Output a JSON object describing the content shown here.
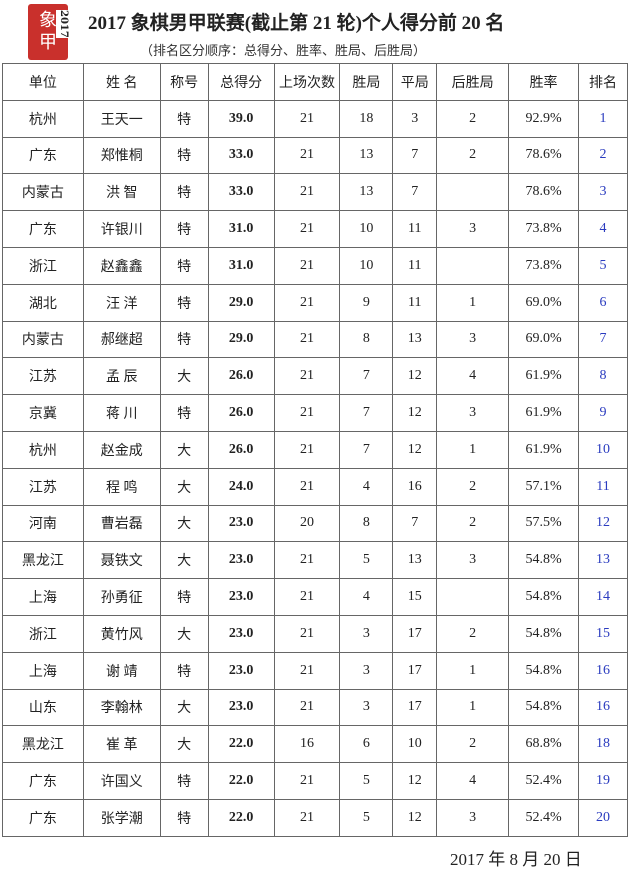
{
  "logo": {
    "text": "象甲",
    "year": "2017",
    "color": "#c9302c"
  },
  "title": "2017 象棋男甲联赛(截止第 21 轮)个人得分前 20 名",
  "subtitle": "（排名区分顺序：总得分、胜率、胜局、后胜局）",
  "columns": [
    "单位",
    "姓 名",
    "称号",
    "总得分",
    "上场次数",
    "胜局",
    "平局",
    "后胜局",
    "胜率",
    "排名"
  ],
  "rows": [
    [
      "杭州",
      "王天一",
      "特",
      "39.0",
      "21",
      "18",
      "3",
      "2",
      "92.9%",
      "1"
    ],
    [
      "广东",
      "郑惟桐",
      "特",
      "33.0",
      "21",
      "13",
      "7",
      "2",
      "78.6%",
      "2"
    ],
    [
      "内蒙古",
      "洪 智",
      "特",
      "33.0",
      "21",
      "13",
      "7",
      "",
      "78.6%",
      "3"
    ],
    [
      "广东",
      "许银川",
      "特",
      "31.0",
      "21",
      "10",
      "11",
      "3",
      "73.8%",
      "4"
    ],
    [
      "浙江",
      "赵鑫鑫",
      "特",
      "31.0",
      "21",
      "10",
      "11",
      "",
      "73.8%",
      "5"
    ],
    [
      "湖北",
      "汪 洋",
      "特",
      "29.0",
      "21",
      "9",
      "11",
      "1",
      "69.0%",
      "6"
    ],
    [
      "内蒙古",
      "郝继超",
      "特",
      "29.0",
      "21",
      "8",
      "13",
      "3",
      "69.0%",
      "7"
    ],
    [
      "江苏",
      "孟 辰",
      "大",
      "26.0",
      "21",
      "7",
      "12",
      "4",
      "61.9%",
      "8"
    ],
    [
      "京冀",
      "蒋 川",
      "特",
      "26.0",
      "21",
      "7",
      "12",
      "3",
      "61.9%",
      "9"
    ],
    [
      "杭州",
      "赵金成",
      "大",
      "26.0",
      "21",
      "7",
      "12",
      "1",
      "61.9%",
      "10"
    ],
    [
      "江苏",
      "程 鸣",
      "大",
      "24.0",
      "21",
      "4",
      "16",
      "2",
      "57.1%",
      "11"
    ],
    [
      "河南",
      "曹岩磊",
      "大",
      "23.0",
      "20",
      "8",
      "7",
      "2",
      "57.5%",
      "12"
    ],
    [
      "黑龙江",
      "聂铁文",
      "大",
      "23.0",
      "21",
      "5",
      "13",
      "3",
      "54.8%",
      "13"
    ],
    [
      "上海",
      "孙勇征",
      "特",
      "23.0",
      "21",
      "4",
      "15",
      "",
      "54.8%",
      "14"
    ],
    [
      "浙江",
      "黄竹风",
      "大",
      "23.0",
      "21",
      "3",
      "17",
      "2",
      "54.8%",
      "15"
    ],
    [
      "上海",
      "谢 靖",
      "特",
      "23.0",
      "21",
      "3",
      "17",
      "1",
      "54.8%",
      "16"
    ],
    [
      "山东",
      "李翰林",
      "大",
      "23.0",
      "21",
      "3",
      "17",
      "1",
      "54.8%",
      "16"
    ],
    [
      "黑龙江",
      "崔 革",
      "大",
      "22.0",
      "16",
      "6",
      "10",
      "2",
      "68.8%",
      "18"
    ],
    [
      "广东",
      "许国义",
      "特",
      "22.0",
      "21",
      "5",
      "12",
      "4",
      "52.4%",
      "19"
    ],
    [
      "广东",
      "张学潮",
      "特",
      "22.0",
      "21",
      "5",
      "12",
      "3",
      "52.4%",
      "20"
    ]
  ],
  "date": "2017 年 8 月 20 日",
  "colors": {
    "rank": "#2a3bbf",
    "border": "#666666"
  }
}
